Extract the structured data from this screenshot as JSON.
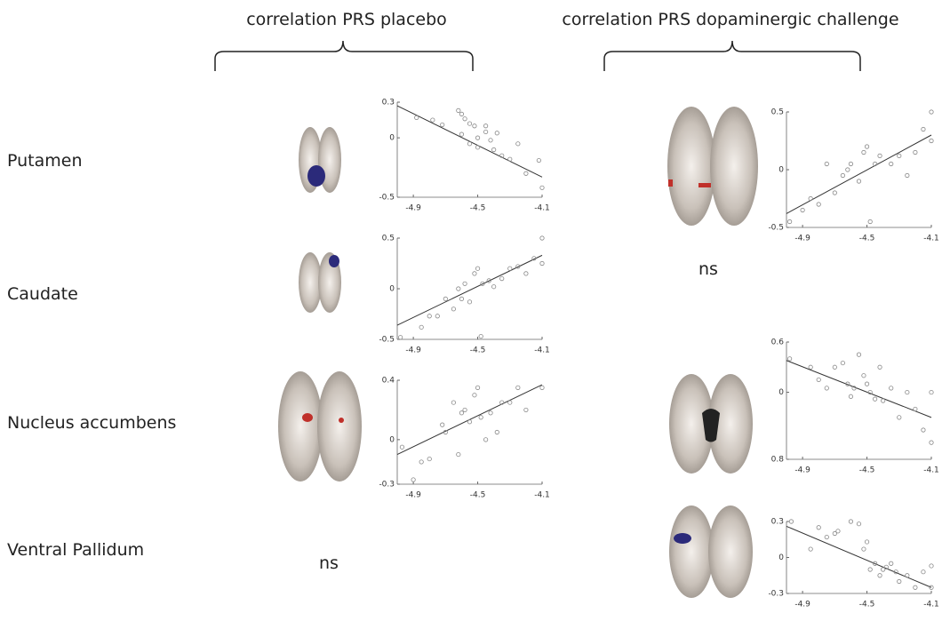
{
  "headers": [
    "correlation PRS placebo",
    "correlation PRS dopaminergic challenge"
  ],
  "rows": [
    "Putamen",
    "Caudate",
    "Nucleus accumbens",
    "Ventral Pallidum"
  ],
  "annotations": [
    "ns",
    "ns"
  ],
  "chart_data": [
    {
      "type": "scatter",
      "xlim": [
        -5.0,
        -4.1
      ],
      "xticks": [
        -4.9,
        -4.5,
        -4.1
      ],
      "ylim": [
        -0.5,
        0.3
      ],
      "yticks": [
        0.3,
        0,
        -0.5
      ],
      "color": "#888888",
      "x": [
        -4.88,
        -4.78,
        -4.72,
        -4.62,
        -4.6,
        -4.58,
        -4.55,
        -4.52,
        -4.6,
        -4.5,
        -4.45,
        -4.42,
        -4.5,
        -4.55,
        -4.4,
        -4.35,
        -4.3,
        -4.45,
        -4.38,
        -4.25,
        -4.2,
        -4.12,
        -4.1
      ],
      "y": [
        0.17,
        0.15,
        0.11,
        0.23,
        0.2,
        0.16,
        0.12,
        0.1,
        0.03,
        0.0,
        0.05,
        -0.02,
        -0.08,
        -0.05,
        -0.1,
        -0.15,
        -0.18,
        0.1,
        0.04,
        -0.05,
        -0.3,
        -0.19,
        -0.42
      ],
      "fit": {
        "x": [
          -5.0,
          -4.1
        ],
        "y": [
          0.27,
          -0.33
        ]
      }
    },
    {
      "type": "scatter",
      "xlim": [
        -5.0,
        -4.1
      ],
      "xticks": [
        -4.9,
        -4.5,
        -4.1
      ],
      "ylim": [
        -0.5,
        0.5
      ],
      "yticks": [
        0.5,
        0,
        -0.5
      ],
      "color": "#888888",
      "x": [
        -4.98,
        -4.85,
        -4.8,
        -4.75,
        -4.7,
        -4.65,
        -4.62,
        -4.6,
        -4.58,
        -4.55,
        -4.52,
        -4.5,
        -4.48,
        -4.47,
        -4.43,
        -4.4,
        -4.35,
        -4.3,
        -4.25,
        -4.2,
        -4.15,
        -4.1,
        -4.1
      ],
      "y": [
        -0.48,
        -0.38,
        -0.27,
        -0.27,
        -0.1,
        -0.2,
        0.0,
        -0.1,
        0.05,
        -0.13,
        0.15,
        0.2,
        -0.47,
        0.05,
        0.08,
        0.02,
        0.1,
        0.2,
        0.22,
        0.15,
        0.3,
        0.5,
        0.25
      ],
      "fit": {
        "x": [
          -5.0,
          -4.1
        ],
        "y": [
          -0.36,
          0.33
        ]
      }
    },
    {
      "type": "scatter",
      "xlim": [
        -5.0,
        -4.1
      ],
      "xticks": [
        -4.9,
        -4.5,
        -4.1
      ],
      "ylim": [
        -0.3,
        0.4
      ],
      "yticks": [
        0.4,
        0,
        -0.3
      ],
      "color": "#888888",
      "x": [
        -4.97,
        -4.9,
        -4.85,
        -4.8,
        -4.72,
        -4.7,
        -4.65,
        -4.62,
        -4.6,
        -4.58,
        -4.55,
        -4.52,
        -4.5,
        -4.48,
        -4.45,
        -4.42,
        -4.38,
        -4.35,
        -4.3,
        -4.25,
        -4.2,
        -4.1
      ],
      "y": [
        -0.05,
        -0.27,
        -0.15,
        -0.13,
        0.1,
        0.05,
        0.25,
        -0.1,
        0.18,
        0.2,
        0.12,
        0.3,
        0.35,
        0.15,
        0.0,
        0.18,
        0.05,
        0.25,
        0.25,
        0.35,
        0.2,
        0.35
      ],
      "fit": {
        "x": [
          -5.0,
          -4.1
        ],
        "y": [
          -0.1,
          0.37
        ]
      }
    },
    {
      "type": "scatter",
      "xlim": [
        -5.0,
        -4.1
      ],
      "xticks": [
        -4.9,
        -4.5,
        -4.1
      ],
      "ylim": [
        -0.5,
        0.5
      ],
      "yticks": [
        0.5,
        0,
        -0.5
      ],
      "color": "#888888",
      "x": [
        -4.98,
        -4.9,
        -4.85,
        -4.8,
        -4.75,
        -4.7,
        -4.65,
        -4.62,
        -4.6,
        -4.55,
        -4.52,
        -4.5,
        -4.48,
        -4.45,
        -4.42,
        -4.35,
        -4.3,
        -4.25,
        -4.2,
        -4.15,
        -4.1,
        -4.1
      ],
      "y": [
        -0.45,
        -0.35,
        -0.25,
        -0.3,
        0.05,
        -0.2,
        -0.05,
        0.0,
        0.05,
        -0.1,
        0.15,
        0.2,
        -0.45,
        0.05,
        0.12,
        0.05,
        0.12,
        -0.05,
        0.15,
        0.35,
        0.5,
        0.25
      ],
      "fit": {
        "x": [
          -5.0,
          -4.1
        ],
        "y": [
          -0.38,
          0.3
        ]
      }
    },
    {
      "type": "scatter",
      "xlim": [
        -5.0,
        -4.1
      ],
      "xticks": [
        -4.9,
        -4.5,
        -4.1
      ],
      "ylim": [
        -0.8,
        0.6
      ],
      "yticks": [
        0.6,
        0,
        {
          "value": -0.8,
          "label": "0.8"
        }
      ],
      "color": "#888888",
      "x": [
        -4.98,
        -4.85,
        -4.8,
        -4.75,
        -4.7,
        -4.65,
        -4.62,
        -4.6,
        -4.58,
        -4.55,
        -4.52,
        -4.5,
        -4.48,
        -4.45,
        -4.42,
        -4.4,
        -4.35,
        -4.3,
        -4.25,
        -4.2,
        -4.15,
        -4.1,
        -4.1
      ],
      "y": [
        0.4,
        0.3,
        0.15,
        0.05,
        0.3,
        0.35,
        0.1,
        -0.05,
        0.05,
        0.45,
        0.2,
        0.1,
        0.0,
        -0.08,
        0.3,
        -0.1,
        0.05,
        -0.3,
        0.0,
        -0.2,
        -0.45,
        0.0,
        -0.6
      ],
      "fit": {
        "x": [
          -5.0,
          -4.1
        ],
        "y": [
          0.38,
          -0.3
        ]
      }
    },
    {
      "type": "scatter",
      "xlim": [
        -5.0,
        -4.1
      ],
      "xticks": [
        -4.9,
        -4.5,
        -4.1
      ],
      "ylim": [
        -0.3,
        0.3
      ],
      "yticks": [
        0.3,
        0,
        -0.3
      ],
      "color": "#888888",
      "x": [
        -4.97,
        -4.85,
        -4.8,
        -4.75,
        -4.7,
        -4.68,
        -4.6,
        -4.55,
        -4.52,
        -4.5,
        -4.48,
        -4.45,
        -4.42,
        -4.4,
        -4.38,
        -4.35,
        -4.32,
        -4.3,
        -4.25,
        -4.2,
        -4.15,
        -4.1,
        -4.1
      ],
      "y": [
        0.3,
        0.07,
        0.25,
        0.17,
        0.2,
        0.22,
        0.3,
        0.28,
        0.07,
        0.13,
        -0.1,
        -0.05,
        -0.15,
        -0.1,
        -0.08,
        -0.05,
        -0.12,
        -0.2,
        -0.15,
        -0.25,
        -0.12,
        -0.07,
        -0.25
      ],
      "fit": {
        "x": [
          -5.0,
          -4.1
        ],
        "y": [
          0.26,
          -0.25
        ]
      }
    }
  ]
}
